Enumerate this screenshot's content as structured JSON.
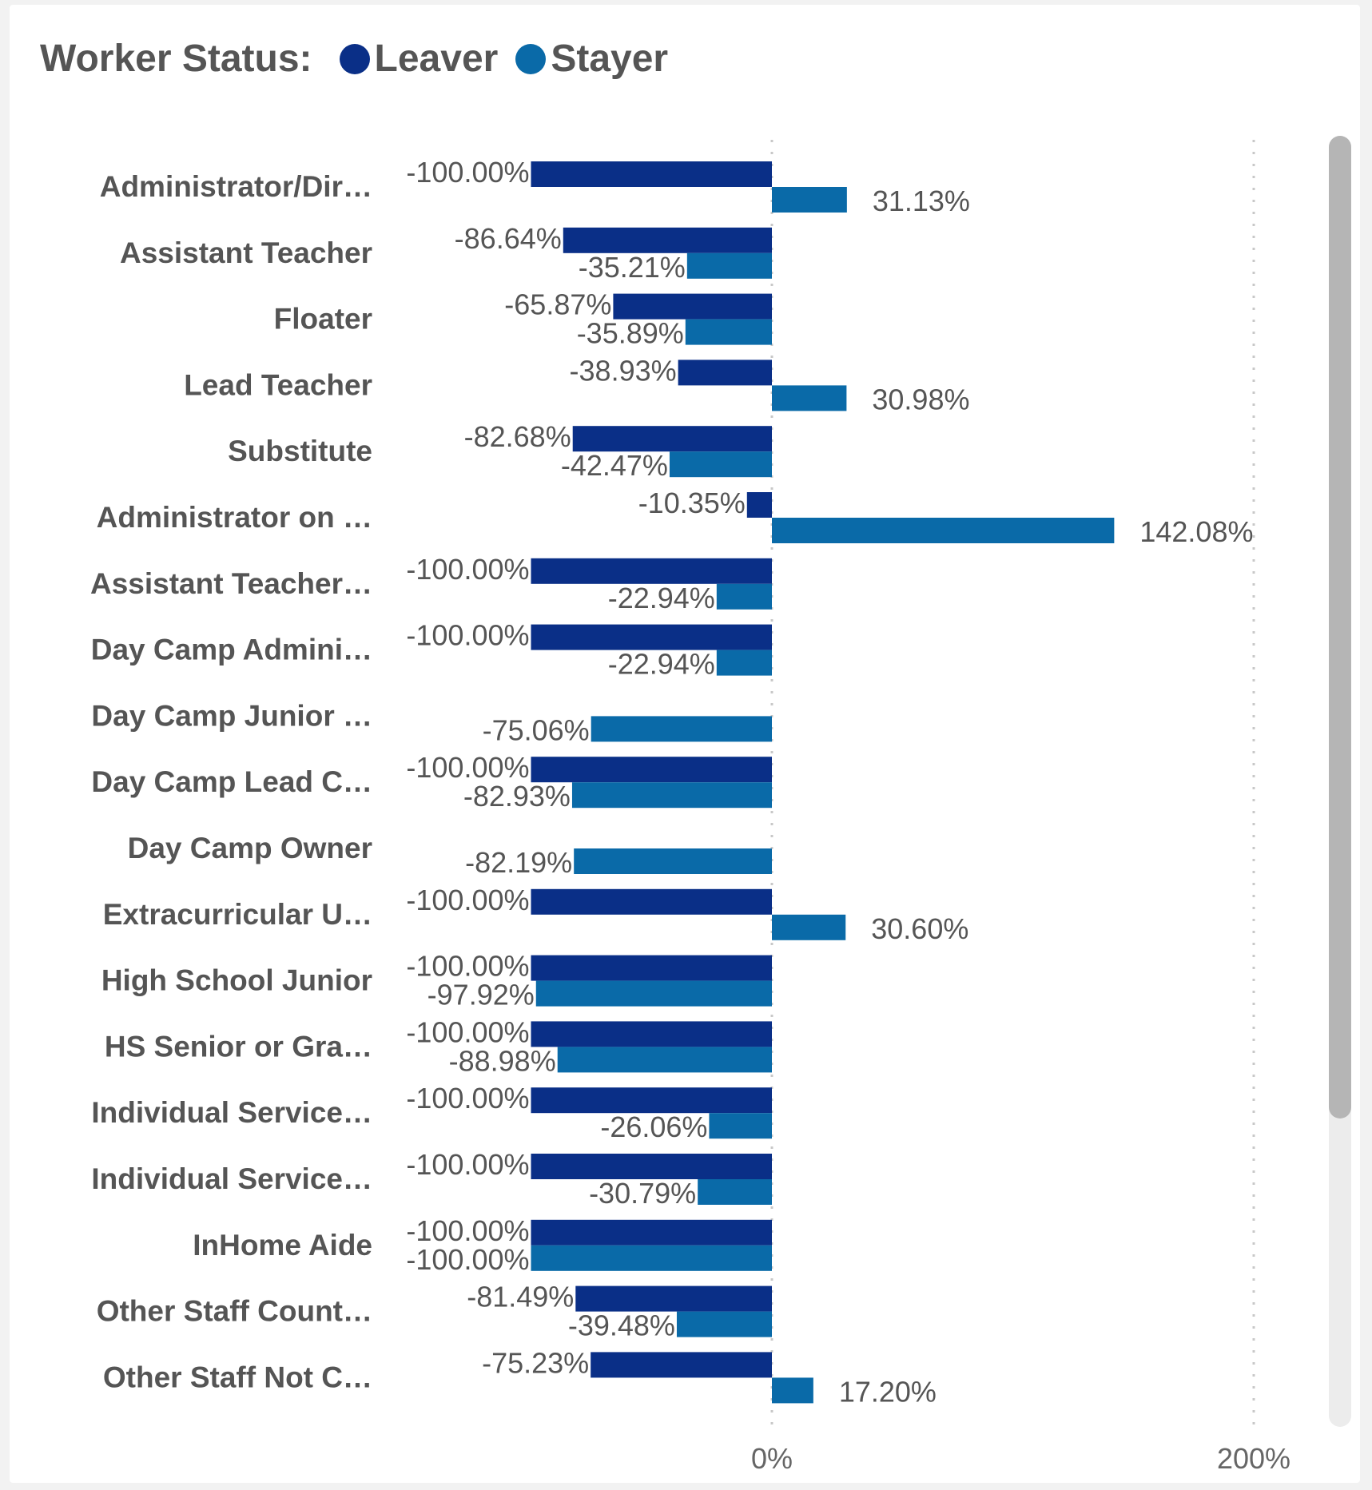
{
  "legend": {
    "title": "Worker Status:",
    "items": [
      {
        "label": "Leaver",
        "color": "#0a2f87"
      },
      {
        "label": "Stayer",
        "color": "#0a6aa8"
      }
    ]
  },
  "chart_data": {
    "type": "bar",
    "orientation": "horizontal",
    "categories": [
      "Administrator/Dir…",
      "Assistant Teacher",
      "Floater",
      "Lead Teacher",
      "Substitute",
      "Administrator on …",
      "Assistant Teacher…",
      "Day Camp Admini…",
      "Day Camp Junior …",
      "Day Camp Lead C…",
      "Day Camp Owner",
      "Extracurricular U…",
      "High School Junior",
      "HS Senior or Gra…",
      "Individual Service…",
      "Individual Service…",
      "InHome Aide",
      "Other Staff Count…",
      "Other Staff Not C…"
    ],
    "series": [
      {
        "name": "Leaver",
        "color": "#0a2f87",
        "values": [
          -100.0,
          -86.64,
          -65.87,
          -38.93,
          -82.68,
          -10.35,
          -100.0,
          -100.0,
          null,
          -100.0,
          null,
          -100.0,
          -100.0,
          -100.0,
          -100.0,
          -100.0,
          -100.0,
          -81.49,
          -75.23
        ],
        "labels": [
          "-100.00%",
          "-86.64%",
          "-65.87%",
          "-38.93%",
          "-82.68%",
          "-10.35%",
          "-100.00%",
          "-100.00%",
          null,
          "-100.00%",
          null,
          "-100.00%",
          "-100.00%",
          "-100.00%",
          "-100.00%",
          "-100.00%",
          "-100.00%",
          "-81.49%",
          "-75.23%"
        ]
      },
      {
        "name": "Stayer",
        "color": "#0a6aa8",
        "values": [
          31.13,
          -35.21,
          -35.89,
          30.98,
          -42.47,
          142.08,
          -22.94,
          -22.94,
          -75.06,
          -82.93,
          -82.19,
          30.6,
          -97.92,
          -88.98,
          -26.06,
          -30.79,
          -100.0,
          -39.48,
          17.2
        ],
        "labels": [
          "31.13%",
          "-35.21%",
          "-35.89%",
          "30.98%",
          "-42.47%",
          "142.08%",
          "-22.94%",
          "-22.94%",
          "-75.06%",
          "-82.93%",
          "-82.19%",
          "30.60%",
          "-97.92%",
          "-88.98%",
          "-26.06%",
          "-30.79%",
          "-100.00%",
          "-39.48%",
          "17.20%"
        ]
      }
    ],
    "x_ticks": [
      {
        "value": 0,
        "label": "0%"
      },
      {
        "value": 200,
        "label": "200%"
      }
    ],
    "xlim": [
      -100,
      200
    ],
    "grid": "vertical dotted lines at 0% and 200%"
  }
}
